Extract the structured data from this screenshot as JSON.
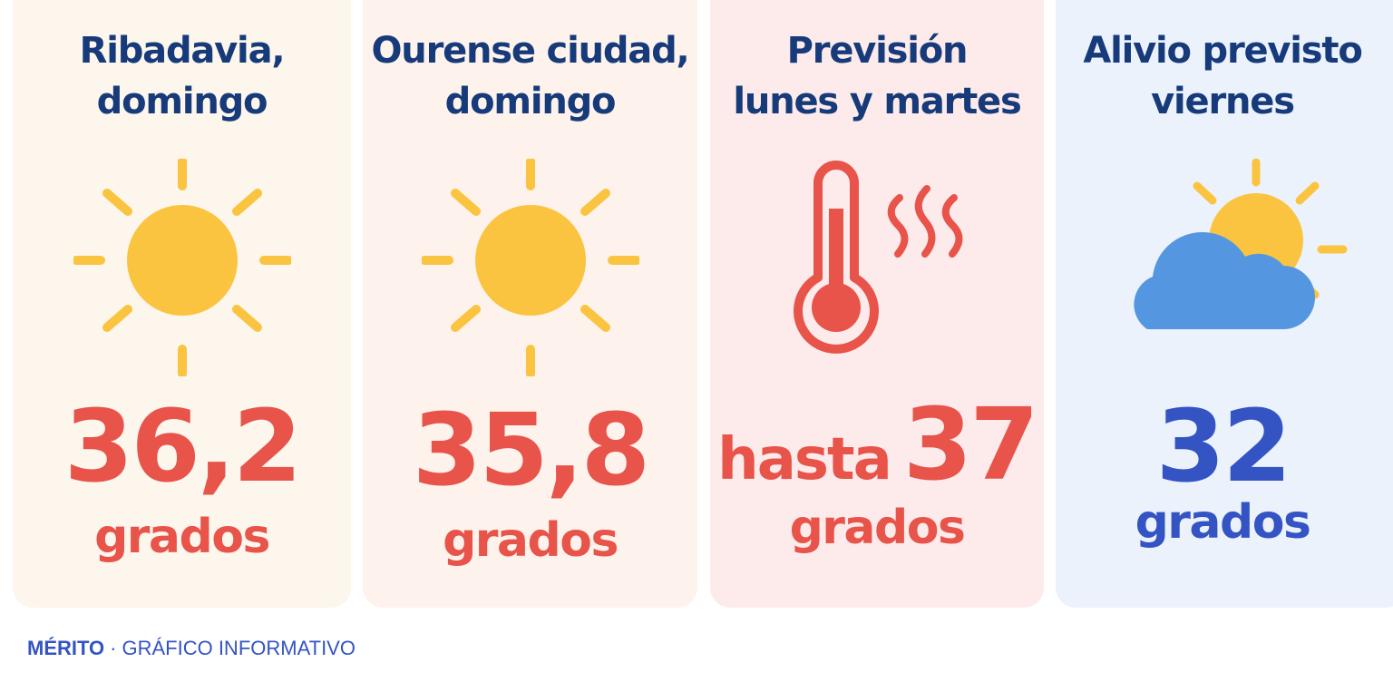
{
  "cards": [
    {
      "title_line1": "Ribadavia,",
      "title_line2": "domingo",
      "icon": "sun-icon",
      "value": "36,2",
      "unit": "grados"
    },
    {
      "title_line1": "Ourense ciudad,",
      "title_line2": "domingo",
      "icon": "sun-icon",
      "value": "35,8",
      "unit": "grados"
    },
    {
      "title_line1": "Previsión",
      "title_line2": "lunes y martes",
      "icon": "thermometer-heat-icon",
      "prefix": "hasta",
      "value": "37",
      "unit": "grados"
    },
    {
      "title_line1": "Alivio previsto",
      "title_line2": "viernes",
      "icon": "partly-cloudy-icon",
      "value": "32",
      "unit": "grados"
    }
  ],
  "footer": {
    "brand": "MÉRITO",
    "separator": "·",
    "label": "GRÁFICO INFORMATIVO"
  },
  "colors": {
    "title": "#163a7a",
    "hot_value": "#e8534a",
    "cool_value": "#3454c4",
    "sun": "#fbc440",
    "cloud": "#5497e0"
  }
}
